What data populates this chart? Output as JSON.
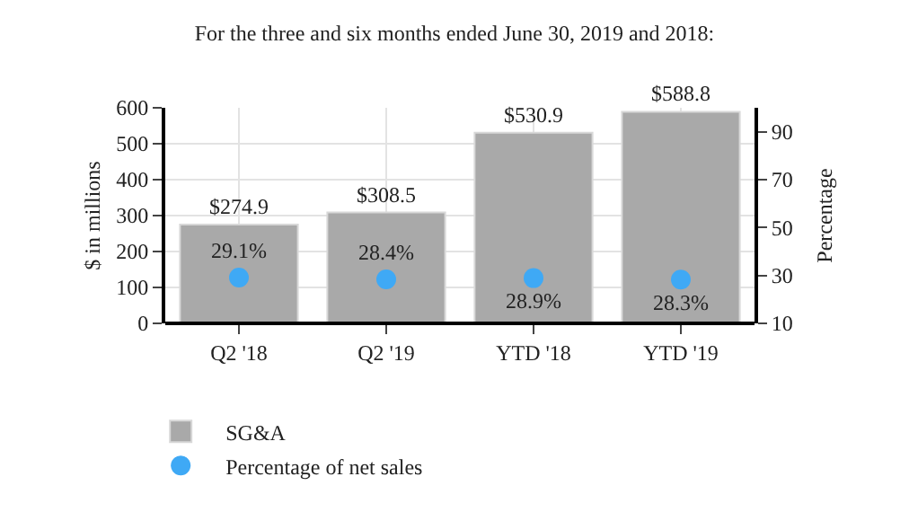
{
  "chart_data": {
    "type": "bar",
    "title": "For the three and six months ended June 30, 2019 and 2018:",
    "ylabel": "$ in millions",
    "y2label": "Percentage",
    "categories": [
      "Q2 '18",
      "Q2 '19",
      "YTD '18",
      "YTD '19"
    ],
    "series": [
      {
        "name": "SG&A",
        "color": "#a9a9a9",
        "values": [
          274.9,
          308.5,
          530.9,
          588.8
        ],
        "value_labels": [
          "$274.9",
          "$308.5",
          "$530.9",
          "$588.8"
        ]
      },
      {
        "name": "Percentage of net sales",
        "type": "scatter",
        "axis": "y2",
        "color": "#3fa9f5",
        "values": [
          29.1,
          28.4,
          28.9,
          28.3
        ],
        "value_labels": [
          "29.1%",
          "28.4%",
          "28.9%",
          "28.3%"
        ]
      }
    ],
    "ylim": [
      0,
      600
    ],
    "yticks": [
      0,
      100,
      200,
      300,
      400,
      500,
      600
    ],
    "y2lim": [
      10,
      100
    ],
    "y2ticks": [
      10,
      30,
      50,
      70,
      90
    ],
    "grid": true,
    "legend": "bottom",
    "marker": "circle"
  }
}
